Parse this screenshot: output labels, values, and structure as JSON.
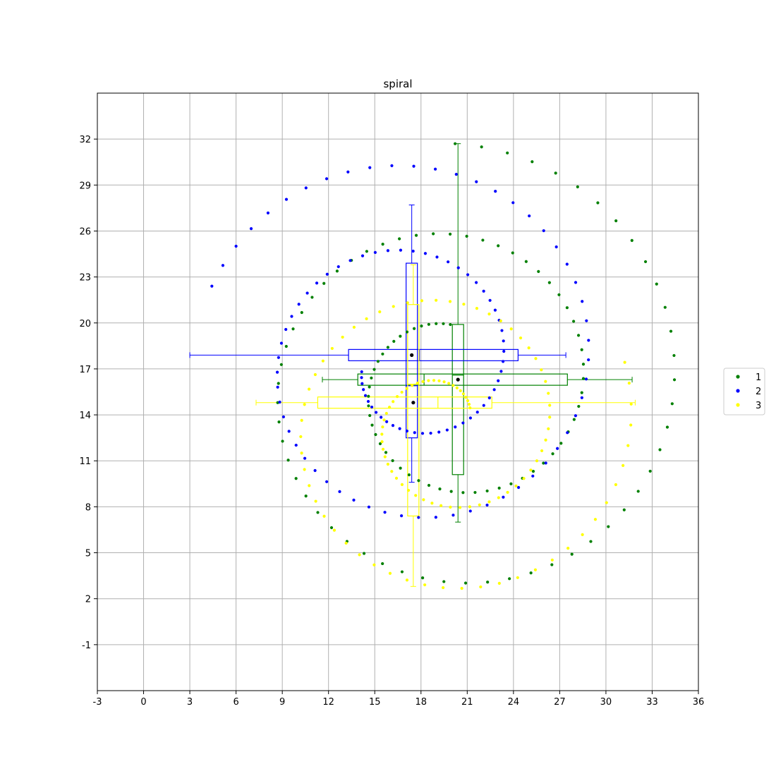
{
  "chart_data": {
    "type": "scatter",
    "title": "spiral",
    "xlim": [
      -3,
      36
    ],
    "ylim": [
      -4,
      35
    ],
    "x_ticks": [
      "-3",
      "0",
      "3",
      "6",
      "9",
      "12",
      "15",
      "18",
      "21",
      "24",
      "27",
      "30",
      "33",
      "36"
    ],
    "y_ticks": [
      "-1",
      "2",
      "5",
      "8",
      "11",
      "14",
      "17",
      "20",
      "23",
      "26",
      "29",
      "32"
    ],
    "grid": true,
    "legend_position": "right",
    "series": [
      {
        "name": "1",
        "color": "#008000",
        "spiral": {
          "cx": 20.1,
          "cy": 15.9,
          "r_start": 4.0,
          "r_end": 15.8,
          "theta_start": 1.62,
          "theta_end": 14.13,
          "points": 115
        },
        "box_x": {
          "min": 11.6,
          "q1": 13.9,
          "median": 18.2,
          "q3": 27.5,
          "max": 31.7,
          "mean": 20.4,
          "y": 16.3
        },
        "box_y": {
          "min": 7.0,
          "q1": 10.1,
          "median": 16.6,
          "q3": 19.9,
          "max": 31.7,
          "mean": 16.3,
          "x": 20.4
        }
      },
      {
        "name": "2",
        "color": "#0000ff",
        "spiral": {
          "cx": 17.4,
          "cy": 17.4,
          "r_start": 3.3,
          "r_end": 13.9,
          "theta_start": 3.32,
          "theta_end": 15.34,
          "points": 110
        },
        "box_x": {
          "min": 3.0,
          "q1": 13.3,
          "median": 17.9,
          "q3": 24.3,
          "max": 27.4,
          "mean": 17.4,
          "y": 17.9
        },
        "box_y": {
          "min": 9.6,
          "q1": 12.5,
          "median": 15.9,
          "q3": 23.9,
          "max": 27.7,
          "mean": 17.9,
          "x": 17.4
        }
      },
      {
        "name": "3",
        "color": "#ffff00",
        "spiral": {
          "cx": 19.6,
          "cy": 13.4,
          "r_start": 1.9,
          "r_end": 12.3,
          "theta_start": 0.59,
          "theta_end": 12.9,
          "points": 110
        },
        "box_x": {
          "min": 7.3,
          "q1": 11.3,
          "median": 19.1,
          "q3": 22.6,
          "max": 31.9,
          "mean": 17.5,
          "y": 14.8
        },
        "box_y": {
          "min": 2.8,
          "q1": 7.4,
          "median": 16.0,
          "q3": 21.2,
          "max": 23.8,
          "mean": 14.8,
          "x": 17.5
        }
      }
    ]
  }
}
